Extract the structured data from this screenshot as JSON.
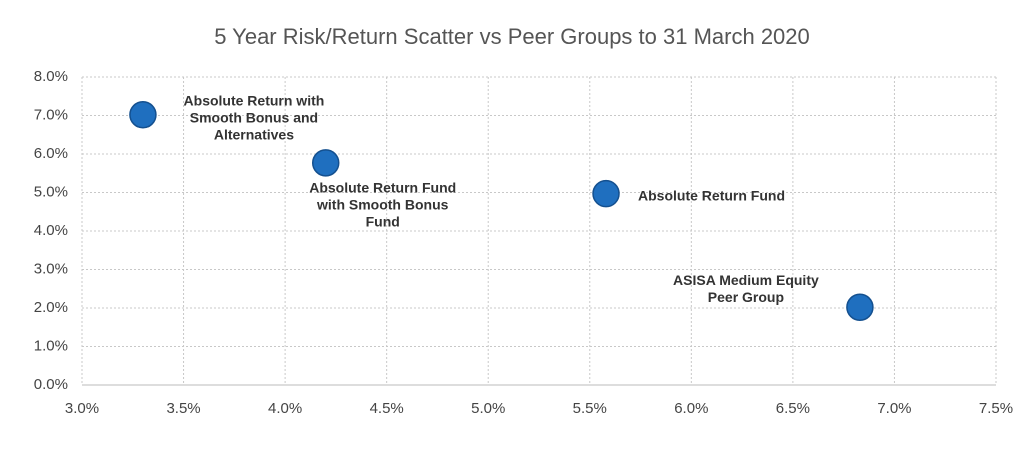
{
  "chart_data": {
    "type": "scatter",
    "title": "5 Year Risk/Return Scatter vs Peer Groups to 31 March 2020",
    "series": [
      {
        "color": "#1f6fbf",
        "x": [
          3.3,
          4.2,
          5.58,
          6.83
        ],
        "values": [
          7.02,
          5.77,
          4.97,
          2.02
        ],
        "labels": [
          [
            "Absolute Return with",
            "Smooth Bonus and",
            "Alternatives"
          ],
          [
            "Absolute Return Fund",
            "with Smooth Bonus",
            "Fund"
          ],
          [
            "Absolute Return Fund"
          ],
          [
            "ASISA Medium Equity",
            "Peer Group"
          ]
        ]
      }
    ],
    "xlim": [
      3.0,
      7.5
    ],
    "xticks": [
      {
        "value": 3.0,
        "label": "3.0%"
      },
      {
        "value": 3.5,
        "label": "3.5%"
      },
      {
        "value": 4.0,
        "label": "4.0%"
      },
      {
        "value": 4.5,
        "label": "4.5%"
      },
      {
        "value": 5.0,
        "label": "5.0%"
      },
      {
        "value": 5.5,
        "label": "5.5%"
      },
      {
        "value": 6.0,
        "label": "6.0%"
      },
      {
        "value": 6.5,
        "label": "6.5%"
      },
      {
        "value": 7.0,
        "label": "7.0%"
      },
      {
        "value": 7.5,
        "label": "7.5%"
      }
    ],
    "ylim": [
      0,
      8
    ],
    "yticks": [
      {
        "value": 0,
        "label": "0.0%"
      },
      {
        "value": 1,
        "label": "1.0%"
      },
      {
        "value": 2,
        "label": "2.0%"
      },
      {
        "value": 3,
        "label": "3.0%"
      },
      {
        "value": 4,
        "label": "4.0%"
      },
      {
        "value": 5,
        "label": "5.0%"
      },
      {
        "value": 6,
        "label": "6.0%"
      },
      {
        "value": 7,
        "label": "7.0%"
      },
      {
        "value": 8,
        "label": "8.0%"
      }
    ],
    "grid": true
  }
}
